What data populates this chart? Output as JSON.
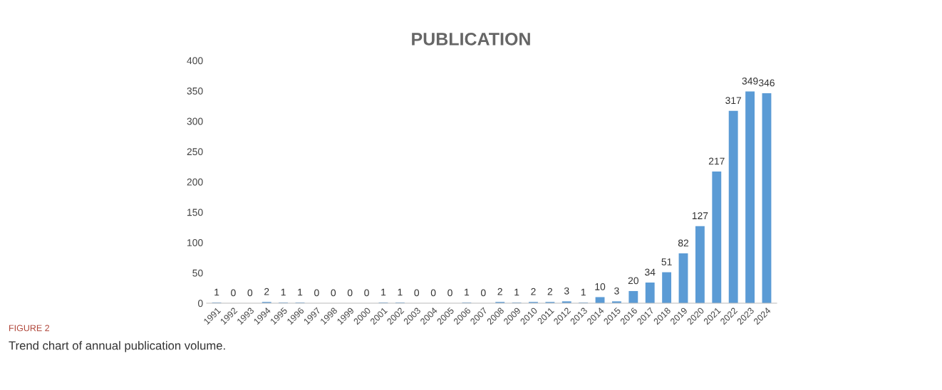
{
  "chart_data": {
    "type": "bar",
    "title": "PUBLICATION",
    "categories": [
      "1991",
      "1992",
      "1993",
      "1994",
      "1995",
      "1996",
      "1997",
      "1998",
      "1999",
      "2000",
      "2001",
      "2002",
      "2003",
      "2004",
      "2005",
      "2006",
      "2007",
      "2008",
      "2009",
      "2010",
      "2011",
      "2012",
      "2013",
      "2014",
      "2015",
      "2016",
      "2017",
      "2018",
      "2019",
      "2020",
      "2021",
      "2022",
      "2023",
      "2024"
    ],
    "values": [
      1,
      0,
      0,
      2,
      1,
      1,
      0,
      0,
      0,
      0,
      1,
      1,
      0,
      0,
      0,
      1,
      0,
      2,
      1,
      2,
      2,
      3,
      1,
      10,
      3,
      20,
      34,
      51,
      82,
      127,
      217,
      317,
      349,
      346
    ],
    "color": "#5b9bd5",
    "ylim": [
      0,
      400
    ],
    "yticks": [
      0,
      50,
      100,
      150,
      200,
      250,
      300,
      350,
      400
    ],
    "data_labels": true,
    "grid": false,
    "legend": false,
    "annotations": [
      "FIGURE 2",
      "Trend chart of annual publication volume."
    ]
  }
}
